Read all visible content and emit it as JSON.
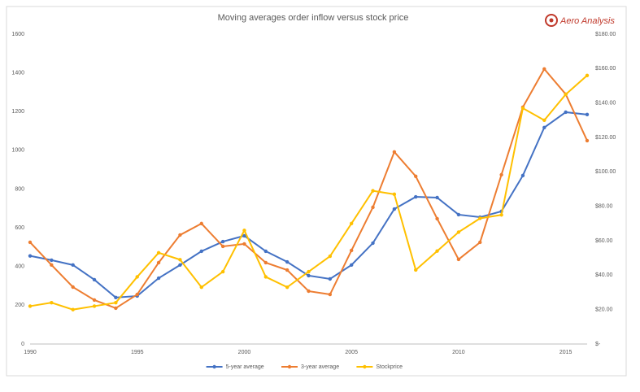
{
  "chart_data": {
    "type": "line",
    "title": "Moving averages order inflow versus stock price",
    "logo": "Aero Analysis",
    "x": [
      1990,
      1991,
      1992,
      1993,
      1994,
      1995,
      1996,
      1997,
      1998,
      1999,
      2000,
      2001,
      2002,
      2003,
      2004,
      2005,
      2006,
      2007,
      2008,
      2009,
      2010,
      2011,
      2012,
      2013,
      2014,
      2015,
      2016
    ],
    "xlim": [
      1990,
      2016
    ],
    "xticks": [
      1990,
      1995,
      2000,
      2005,
      2010,
      2015
    ],
    "ylim": [
      0,
      1600
    ],
    "yticks": [
      0,
      200,
      400,
      600,
      800,
      1000,
      1200,
      1400,
      1600
    ],
    "y2lim": [
      0,
      180
    ],
    "y2ticks": [
      {
        "value": 0,
        "label": "$-"
      },
      {
        "value": 20,
        "label": "$20.00"
      },
      {
        "value": 40,
        "label": "$40.00"
      },
      {
        "value": 60,
        "label": "$60.00"
      },
      {
        "value": 80,
        "label": "$80.00"
      },
      {
        "value": 100,
        "label": "$100.00"
      },
      {
        "value": 120,
        "label": "$120.00"
      },
      {
        "value": 140,
        "label": "$140.00"
      },
      {
        "value": 160,
        "label": "$160.00"
      },
      {
        "value": 180,
        "label": "$180.00"
      }
    ],
    "grid": false,
    "legend": "bottom",
    "series": [
      {
        "name": "5-year average",
        "color": "#4472c4",
        "values": [
          455,
          433,
          408,
          332,
          240,
          248,
          340,
          408,
          479,
          529,
          559,
          479,
          424,
          353,
          336,
          408,
          521,
          697,
          760,
          756,
          668,
          655,
          685,
          870,
          1118,
          1197,
          1185
        ]
      },
      {
        "name": "3-year average",
        "color": "#ed7d31",
        "values": [
          525,
          408,
          294,
          227,
          185,
          256,
          420,
          563,
          622,
          504,
          517,
          420,
          382,
          273,
          256,
          483,
          706,
          992,
          866,
          647,
          437,
          525,
          874,
          1223,
          1420,
          1290,
          1050
        ]
      },
      {
        "name": "Stockprice",
        "color": "#ffc000",
        "axis": "y2",
        "values": [
          22,
          24,
          20,
          22,
          24,
          39,
          53,
          49,
          33,
          42,
          66,
          39,
          33,
          42,
          51,
          70,
          89,
          87,
          43,
          54,
          65,
          73,
          75,
          137,
          130,
          145,
          156
        ]
      }
    ]
  }
}
